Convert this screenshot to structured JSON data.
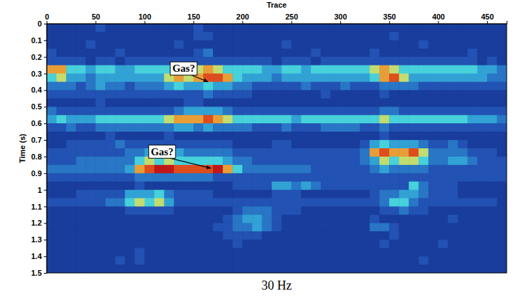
{
  "chart_data": {
    "type": "heatmap",
    "title": "30 Hz",
    "x_label": "Trace",
    "y_label": "Time (s)",
    "xlim": [
      0,
      470
    ],
    "ylim": [
      0,
      1.5
    ],
    "xticks": [
      0,
      50,
      100,
      150,
      200,
      250,
      300,
      350,
      400,
      450
    ],
    "yticks": [
      0,
      0.1,
      0.2,
      0.3,
      0.4,
      0.5,
      0.6,
      0.7,
      0.8,
      0.9,
      1,
      1.1,
      1.2,
      1.3,
      1.4,
      1.5
    ],
    "zlim": [
      0,
      9
    ],
    "x_edges": [
      0,
      10,
      20,
      30,
      40,
      50,
      60,
      70,
      80,
      90,
      100,
      110,
      120,
      130,
      140,
      150,
      160,
      170,
      180,
      190,
      200,
      210,
      220,
      230,
      240,
      250,
      260,
      270,
      280,
      290,
      300,
      310,
      320,
      330,
      340,
      350,
      360,
      370,
      380,
      390,
      400,
      410,
      420,
      430,
      440,
      450,
      460,
      470
    ],
    "y_edges": [
      0,
      0.05,
      0.1,
      0.15,
      0.2,
      0.25,
      0.3,
      0.35,
      0.4,
      0.45,
      0.5,
      0.55,
      0.6,
      0.65,
      0.7,
      0.75,
      0.8,
      0.85,
      0.9,
      0.95,
      1,
      1.05,
      1.1,
      1.15,
      1.2,
      1.25,
      1.3,
      1.35,
      1.4,
      1.45,
      1.5
    ],
    "values": [
      [
        1,
        1,
        1,
        1,
        1,
        2,
        1,
        1,
        1,
        1,
        1,
        1,
        1,
        1,
        1,
        2,
        1,
        1,
        1,
        1,
        1,
        1,
        1,
        1,
        1,
        1,
        1,
        1,
        1,
        1,
        1,
        1,
        1,
        1,
        1,
        1,
        1,
        1,
        1,
        1,
        1,
        1,
        1,
        1,
        1,
        1,
        1
      ],
      [
        1,
        1,
        1,
        1,
        1,
        1,
        1,
        1,
        1,
        1,
        1,
        1,
        1,
        1,
        1,
        2,
        2,
        1,
        1,
        1,
        1,
        1,
        1,
        1,
        1,
        1,
        1,
        1,
        1,
        1,
        1,
        1,
        1,
        1,
        1,
        2,
        1,
        1,
        1,
        1,
        1,
        1,
        1,
        1,
        1,
        1,
        1
      ],
      [
        1,
        1,
        1,
        1,
        2,
        1,
        1,
        1,
        1,
        1,
        1,
        1,
        1,
        2,
        1,
        1,
        1,
        1,
        1,
        1,
        1,
        1,
        1,
        1,
        2,
        1,
        1,
        1,
        1,
        1,
        1,
        1,
        1,
        1,
        1,
        1,
        1,
        1,
        2,
        1,
        1,
        1,
        1,
        1,
        1,
        1,
        1
      ],
      [
        2,
        1,
        1,
        1,
        1,
        1,
        1,
        2,
        1,
        1,
        1,
        1,
        1,
        1,
        1,
        2,
        3,
        1,
        1,
        1,
        1,
        1,
        1,
        1,
        1,
        1,
        1,
        2,
        1,
        1,
        1,
        1,
        1,
        2,
        1,
        1,
        1,
        1,
        1,
        1,
        1,
        1,
        1,
        2,
        1,
        1,
        1
      ],
      [
        2,
        2,
        2,
        2,
        1,
        2,
        2,
        1,
        2,
        2,
        2,
        2,
        2,
        2,
        2,
        2,
        2,
        2,
        2,
        2,
        2,
        2,
        2,
        1,
        2,
        2,
        2,
        1,
        2,
        2,
        2,
        2,
        2,
        2,
        2,
        2,
        2,
        2,
        2,
        2,
        2,
        2,
        2,
        2,
        1,
        2,
        1
      ],
      [
        7,
        7,
        5,
        5,
        4,
        5,
        5,
        4,
        4,
        5,
        5,
        5,
        5,
        6,
        6,
        6,
        7,
        6,
        5,
        5,
        5,
        5,
        4,
        4,
        5,
        5,
        4,
        5,
        5,
        5,
        5,
        5,
        5,
        6,
        7,
        6,
        5,
        5,
        5,
        5,
        5,
        5,
        5,
        5,
        4,
        4,
        3
      ],
      [
        5,
        6,
        4,
        4,
        3,
        4,
        4,
        4,
        4,
        4,
        4,
        4,
        6,
        7,
        6,
        7,
        8,
        8,
        7,
        5,
        4,
        4,
        4,
        3,
        4,
        4,
        4,
        4,
        4,
        4,
        4,
        4,
        4,
        5,
        7,
        8,
        6,
        4,
        4,
        4,
        4,
        4,
        4,
        4,
        4,
        3,
        3
      ],
      [
        3,
        3,
        3,
        2,
        3,
        4,
        3,
        3,
        2,
        3,
        3,
        3,
        4,
        5,
        4,
        4,
        5,
        4,
        4,
        3,
        3,
        2,
        2,
        2,
        2,
        2,
        3,
        2,
        2,
        2,
        3,
        2,
        2,
        2,
        3,
        3,
        3,
        3,
        2,
        2,
        2,
        2,
        2,
        2,
        2,
        2,
        2
      ],
      [
        2,
        2,
        2,
        2,
        2,
        2,
        2,
        2,
        2,
        2,
        2,
        2,
        2,
        2,
        2,
        2,
        3,
        2,
        2,
        2,
        2,
        1,
        1,
        1,
        1,
        1,
        1,
        1,
        2,
        1,
        1,
        1,
        1,
        1,
        2,
        1,
        1,
        1,
        1,
        1,
        1,
        1,
        1,
        1,
        1,
        1,
        1
      ],
      [
        1,
        1,
        1,
        1,
        1,
        2,
        1,
        1,
        1,
        1,
        1,
        1,
        1,
        1,
        2,
        2,
        1,
        1,
        1,
        1,
        1,
        1,
        1,
        1,
        1,
        1,
        1,
        1,
        1,
        1,
        1,
        1,
        1,
        1,
        1,
        1,
        1,
        1,
        1,
        1,
        1,
        1,
        1,
        1,
        1,
        1,
        1
      ],
      [
        3,
        2,
        2,
        2,
        2,
        2,
        2,
        2,
        2,
        2,
        2,
        2,
        2,
        3,
        4,
        4,
        4,
        4,
        3,
        2,
        2,
        2,
        2,
        2,
        2,
        2,
        2,
        2,
        2,
        2,
        2,
        2,
        2,
        2,
        3,
        3,
        2,
        2,
        2,
        2,
        2,
        2,
        2,
        2,
        2,
        2,
        2
      ],
      [
        4,
        5,
        4,
        4,
        4,
        5,
        5,
        5,
        5,
        5,
        5,
        5,
        6,
        7,
        7,
        7,
        8,
        7,
        6,
        5,
        5,
        5,
        5,
        5,
        5,
        4,
        5,
        5,
        5,
        5,
        5,
        5,
        5,
        5,
        6,
        5,
        5,
        5,
        5,
        5,
        5,
        5,
        5,
        4,
        4,
        4,
        3
      ],
      [
        2,
        2,
        3,
        2,
        2,
        3,
        3,
        3,
        3,
        3,
        3,
        3,
        3,
        4,
        4,
        3,
        4,
        3,
        3,
        3,
        3,
        2,
        2,
        2,
        3,
        2,
        2,
        2,
        3,
        3,
        3,
        3,
        2,
        2,
        3,
        2,
        2,
        2,
        2,
        2,
        2,
        2,
        2,
        2,
        2,
        2,
        2
      ],
      [
        1,
        1,
        1,
        1,
        1,
        1,
        2,
        1,
        1,
        1,
        1,
        1,
        2,
        1,
        1,
        1,
        1,
        1,
        1,
        1,
        1,
        1,
        1,
        1,
        1,
        1,
        1,
        1,
        1,
        1,
        1,
        1,
        1,
        1,
        2,
        1,
        1,
        1,
        1,
        1,
        1,
        1,
        1,
        1,
        1,
        1,
        1
      ],
      [
        1,
        1,
        2,
        2,
        2,
        2,
        2,
        3,
        2,
        2,
        2,
        2,
        2,
        2,
        2,
        2,
        2,
        2,
        2,
        1,
        1,
        1,
        1,
        2,
        2,
        1,
        1,
        1,
        1,
        1,
        1,
        1,
        2,
        4,
        5,
        4,
        4,
        4,
        3,
        2,
        2,
        3,
        2,
        1,
        1,
        1,
        1
      ],
      [
        2,
        2,
        2,
        2,
        2,
        2,
        2,
        2,
        3,
        3,
        4,
        4,
        4,
        4,
        3,
        3,
        3,
        3,
        3,
        2,
        2,
        2,
        2,
        2,
        2,
        2,
        2,
        2,
        2,
        2,
        2,
        2,
        3,
        7,
        8,
        7,
        7,
        8,
        6,
        3,
        3,
        3,
        3,
        2,
        2,
        2,
        1
      ],
      [
        2,
        2,
        2,
        3,
        3,
        3,
        3,
        3,
        3,
        5,
        6,
        5,
        6,
        5,
        5,
        5,
        5,
        5,
        4,
        3,
        3,
        2,
        2,
        2,
        2,
        2,
        2,
        2,
        2,
        2,
        2,
        2,
        3,
        4,
        6,
        5,
        6,
        6,
        5,
        3,
        3,
        4,
        4,
        3,
        2,
        2,
        2
      ],
      [
        3,
        3,
        3,
        3,
        3,
        3,
        3,
        3,
        4,
        7,
        8,
        9,
        9,
        8,
        8,
        8,
        8,
        9,
        7,
        5,
        3,
        3,
        3,
        3,
        3,
        3,
        3,
        2,
        2,
        2,
        2,
        2,
        2,
        3,
        4,
        3,
        3,
        3,
        3,
        2,
        2,
        2,
        2,
        2,
        2,
        2,
        2
      ],
      [
        2,
        2,
        2,
        2,
        2,
        2,
        2,
        2,
        2,
        3,
        3,
        3,
        3,
        3,
        3,
        3,
        3,
        2,
        2,
        2,
        2,
        2,
        2,
        2,
        2,
        2,
        2,
        2,
        2,
        2,
        2,
        2,
        2,
        2,
        2,
        2,
        2,
        2,
        2,
        2,
        2,
        2,
        2,
        2,
        2,
        2,
        2
      ],
      [
        1,
        1,
        1,
        1,
        1,
        1,
        1,
        1,
        1,
        2,
        1,
        1,
        1,
        1,
        1,
        1,
        1,
        1,
        1,
        2,
        2,
        2,
        2,
        4,
        4,
        3,
        4,
        3,
        2,
        2,
        2,
        2,
        2,
        2,
        2,
        2,
        2,
        5,
        3,
        2,
        2,
        2,
        1,
        1,
        1,
        1,
        1
      ],
      [
        1,
        1,
        1,
        2,
        2,
        2,
        2,
        2,
        4,
        4,
        4,
        5,
        3,
        2,
        2,
        2,
        2,
        1,
        1,
        1,
        1,
        1,
        1,
        2,
        2,
        2,
        1,
        1,
        1,
        1,
        1,
        1,
        1,
        2,
        3,
        3,
        4,
        4,
        3,
        2,
        2,
        2,
        1,
        1,
        1,
        1,
        1
      ],
      [
        2,
        2,
        2,
        2,
        2,
        2,
        3,
        3,
        5,
        6,
        5,
        6,
        4,
        2,
        2,
        2,
        2,
        2,
        2,
        2,
        2,
        2,
        2,
        2,
        2,
        2,
        2,
        2,
        2,
        2,
        2,
        2,
        2,
        2,
        3,
        5,
        5,
        3,
        2,
        2,
        2,
        2,
        2,
        2,
        2,
        2,
        1
      ],
      [
        1,
        1,
        1,
        1,
        1,
        1,
        1,
        1,
        2,
        2,
        2,
        2,
        2,
        1,
        1,
        1,
        1,
        1,
        1,
        2,
        3,
        3,
        3,
        2,
        2,
        2,
        1,
        1,
        1,
        1,
        1,
        1,
        1,
        1,
        2,
        2,
        3,
        2,
        2,
        1,
        1,
        1,
        1,
        1,
        1,
        1,
        1
      ],
      [
        1,
        1,
        1,
        1,
        1,
        1,
        1,
        1,
        1,
        1,
        1,
        1,
        1,
        1,
        1,
        1,
        1,
        1,
        2,
        3,
        4,
        4,
        3,
        2,
        1,
        1,
        1,
        1,
        1,
        1,
        1,
        1,
        1,
        2,
        1,
        1,
        1,
        1,
        1,
        1,
        1,
        2,
        1,
        1,
        1,
        1,
        1
      ],
      [
        1,
        1,
        1,
        1,
        1,
        1,
        1,
        1,
        1,
        1,
        1,
        1,
        1,
        1,
        1,
        1,
        1,
        2,
        2,
        3,
        3,
        4,
        3,
        2,
        1,
        1,
        1,
        1,
        1,
        1,
        1,
        1,
        1,
        3,
        3,
        2,
        1,
        1,
        1,
        1,
        1,
        1,
        1,
        1,
        1,
        1,
        1
      ],
      [
        1,
        1,
        1,
        1,
        1,
        1,
        1,
        1,
        1,
        1,
        1,
        1,
        1,
        1,
        1,
        1,
        1,
        1,
        2,
        2,
        2,
        2,
        1,
        1,
        1,
        1,
        1,
        1,
        1,
        1,
        1,
        1,
        1,
        1,
        1,
        2,
        1,
        1,
        1,
        1,
        1,
        1,
        1,
        1,
        1,
        1,
        1
      ],
      [
        1,
        1,
        1,
        1,
        1,
        1,
        1,
        1,
        1,
        1,
        1,
        1,
        1,
        1,
        1,
        1,
        1,
        1,
        1,
        2,
        1,
        1,
        1,
        1,
        1,
        1,
        1,
        1,
        1,
        1,
        1,
        1,
        1,
        1,
        2,
        1,
        1,
        1,
        1,
        1,
        2,
        1,
        1,
        1,
        1,
        1,
        1
      ],
      [
        1,
        1,
        1,
        1,
        1,
        1,
        1,
        1,
        1,
        2,
        1,
        1,
        1,
        1,
        1,
        1,
        1,
        1,
        1,
        1,
        1,
        1,
        1,
        1,
        1,
        1,
        1,
        1,
        1,
        1,
        1,
        1,
        1,
        1,
        1,
        1,
        1,
        1,
        1,
        1,
        1,
        1,
        1,
        1,
        1,
        1,
        1
      ],
      [
        1,
        1,
        1,
        1,
        1,
        1,
        1,
        2,
        1,
        2,
        1,
        1,
        1,
        1,
        1,
        1,
        1,
        1,
        1,
        1,
        1,
        1,
        1,
        1,
        1,
        1,
        1,
        1,
        1,
        1,
        1,
        1,
        1,
        1,
        1,
        1,
        1,
        1,
        2,
        1,
        1,
        1,
        1,
        1,
        1,
        1,
        1
      ],
      [
        1,
        1,
        1,
        1,
        1,
        1,
        1,
        1,
        1,
        1,
        1,
        1,
        1,
        1,
        1,
        1,
        1,
        1,
        1,
        1,
        1,
        1,
        1,
        1,
        1,
        1,
        1,
        1,
        1,
        1,
        1,
        1,
        1,
        1,
        1,
        1,
        1,
        1,
        1,
        1,
        1,
        1,
        1,
        1,
        1,
        1,
        1
      ]
    ],
    "annotations": [
      {
        "text": "Gas?",
        "x": 140,
        "y": 0.27,
        "arrow_x": 165,
        "arrow_y": 0.35
      },
      {
        "text": "Gas?",
        "x": 118,
        "y": 0.77,
        "arrow_x": 168,
        "arrow_y": 0.87
      }
    ]
  }
}
